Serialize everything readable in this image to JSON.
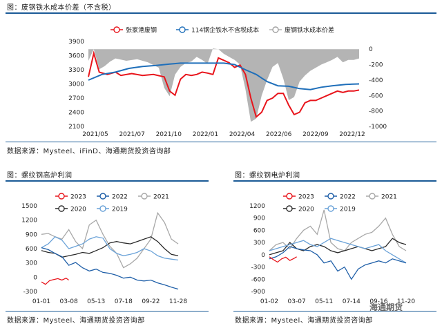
{
  "captions": {
    "fig1_title": "图：废钢铁水成本价差（不含税）",
    "fig1_source": "数据来源：Mysteel、iFinD、海通期货投资咨询部",
    "fig2_title": "图：螺纹钢高炉利润",
    "fig2_source": "数据来源：Mysteel、海通期货投资咨询部",
    "fig3_title": "图：螺纹钢电炉利润",
    "fig3_source": "数据来源：Mysteel、海通期货投资咨询部"
  },
  "watermark": "海通期货",
  "chart_data": [
    {
      "type": "line",
      "title": "",
      "x_ticks": [
        "2021/05",
        "2021/07",
        "2021/10",
        "2022/01",
        "2022/04",
        "2022/06",
        "2022/09",
        "2022/12"
      ],
      "y_left_ticks": [
        2100,
        2400,
        2700,
        3000,
        3300,
        3600,
        3900
      ],
      "y_right_ticks": [
        0,
        -200,
        -400,
        -600,
        -800,
        -1000
      ],
      "ylim_left": [
        2100,
        3900
      ],
      "ylim_right": [
        -1000,
        100
      ],
      "legend": "top",
      "series": [
        {
          "name": "张家港废钢",
          "axis": "left",
          "color": "#e8141b",
          "style": "line",
          "x": [
            0,
            2,
            4,
            7,
            10,
            12,
            16,
            20,
            24,
            28,
            30,
            32,
            34,
            36,
            38,
            40,
            42,
            44,
            46,
            48,
            50,
            52,
            54,
            56,
            58,
            60,
            62,
            64,
            66,
            68,
            70,
            72,
            74,
            76,
            78,
            80,
            82,
            84,
            86,
            88,
            90,
            92,
            94,
            96,
            98,
            100
          ],
          "values": [
            3150,
            3650,
            3250,
            3200,
            3250,
            3180,
            3220,
            3180,
            3200,
            3150,
            2850,
            2760,
            3100,
            3200,
            3180,
            3200,
            3250,
            3230,
            3200,
            3550,
            3500,
            3450,
            3350,
            3400,
            3200,
            2700,
            2300,
            2400,
            2650,
            2700,
            2800,
            2800,
            2550,
            2350,
            2400,
            2600,
            2650,
            2650,
            2700,
            2750,
            2800,
            2850,
            2820,
            2850,
            2850,
            2870
          ]
        },
        {
          "name": "114钢企铁水不含税成本",
          "axis": "left",
          "color": "#1f6fba",
          "style": "line",
          "x": [
            0,
            5,
            10,
            15,
            20,
            25,
            30,
            34,
            38,
            42,
            46,
            50,
            54,
            58,
            62,
            66,
            70,
            74,
            78,
            82,
            86,
            90,
            95,
            100
          ],
          "values": [
            3080,
            3200,
            3250,
            3330,
            3370,
            3390,
            3420,
            3440,
            3440,
            3440,
            3440,
            3440,
            3410,
            3300,
            3200,
            3050,
            2960,
            2950,
            2900,
            2880,
            2930,
            2960,
            2990,
            3000
          ]
        },
        {
          "name": "废钢铁水成本价差",
          "axis": "right",
          "color": "#b4b4b4",
          "style": "area",
          "x": [
            0,
            2,
            4,
            6,
            8,
            10,
            14,
            18,
            22,
            26,
            28,
            30,
            32,
            34,
            36,
            38,
            40,
            42,
            44,
            46,
            48,
            50,
            52,
            54,
            56,
            58,
            60,
            62,
            64,
            66,
            68,
            70,
            72,
            74,
            76,
            78,
            80,
            82,
            84,
            86,
            88,
            90,
            92,
            94,
            96,
            98,
            100
          ],
          "values": [
            -150,
            0,
            -260,
            -220,
            -160,
            -120,
            -150,
            -130,
            -170,
            -240,
            -500,
            -610,
            -330,
            -230,
            -180,
            -160,
            -100,
            -140,
            -190,
            10,
            0,
            -60,
            -100,
            -140,
            -200,
            -520,
            -940,
            -900,
            -600,
            -400,
            -230,
            -180,
            -380,
            -660,
            -620,
            -420,
            -340,
            -280,
            -240,
            -200,
            -170,
            -140,
            -100,
            -170,
            -140,
            -140,
            -120
          ]
        }
      ]
    },
    {
      "type": "line",
      "title": "",
      "x_ticks": [
        "01-01",
        "03-08",
        "05-13",
        "07-18",
        "09-22",
        "11-28"
      ],
      "y_ticks": [
        -300,
        0,
        300,
        600,
        900,
        1200,
        1500
      ],
      "ylim": [
        -300,
        1500
      ],
      "legend": "top",
      "series": [
        {
          "name": "2023",
          "color": "#e8141b",
          "x": [
            0,
            3,
            6,
            9,
            12,
            15,
            18,
            20
          ],
          "values": [
            -100,
            -150,
            -70,
            -50,
            -30,
            -60,
            -20,
            -60
          ]
        },
        {
          "name": "2022",
          "color": "#1f5fa8",
          "x": [
            0,
            5,
            10,
            15,
            20,
            25,
            30,
            35,
            40,
            45,
            50,
            55,
            60,
            65,
            70,
            75,
            80,
            85,
            90,
            95,
            100
          ],
          "values": [
            620,
            580,
            500,
            430,
            250,
            310,
            200,
            130,
            170,
            100,
            80,
            40,
            -20,
            0,
            -60,
            -80,
            -60,
            -120,
            -160,
            -210,
            -250
          ]
        },
        {
          "name": "2021",
          "color": "#a8a8a8",
          "x": [
            0,
            5,
            10,
            15,
            20,
            25,
            30,
            35,
            40,
            45,
            50,
            55,
            60,
            65,
            70,
            75,
            80,
            85,
            90,
            95,
            100
          ],
          "values": [
            900,
            920,
            850,
            800,
            1000,
            750,
            600,
            1100,
            1200,
            900,
            650,
            500,
            200,
            280,
            400,
            600,
            800,
            1350,
            1150,
            800,
            700
          ]
        },
        {
          "name": "2020",
          "color": "#2a2a2a",
          "x": [
            0,
            5,
            10,
            15,
            20,
            25,
            30,
            35,
            40,
            45,
            50,
            55,
            60,
            65,
            70,
            75,
            80,
            85,
            90,
            95,
            100
          ],
          "values": [
            560,
            520,
            500,
            420,
            450,
            480,
            520,
            500,
            560,
            620,
            720,
            750,
            720,
            700,
            750,
            800,
            850,
            750,
            600,
            480,
            450
          ]
        },
        {
          "name": "2019",
          "color": "#6aa2d8",
          "x": [
            0,
            5,
            10,
            15,
            20,
            25,
            30,
            35,
            40,
            45,
            50,
            55,
            60,
            65,
            70,
            75,
            80,
            85,
            90,
            95,
            100
          ],
          "values": [
            620,
            700,
            850,
            780,
            600,
            650,
            700,
            800,
            850,
            820,
            600,
            500,
            450,
            480,
            520,
            600,
            550,
            450,
            400,
            380,
            360
          ]
        }
      ]
    },
    {
      "type": "line",
      "title": "",
      "x_ticks": [
        "01-02",
        "03-07",
        "05-11",
        "07-14",
        "09-16",
        "11-20"
      ],
      "y_ticks": [
        -900,
        -600,
        -300,
        0,
        300,
        600,
        900,
        1200
      ],
      "ylim": [
        -900,
        1200
      ],
      "legend": "top",
      "series": [
        {
          "name": "2023",
          "color": "#e8141b",
          "x": [
            0,
            3,
            6,
            9,
            12,
            15,
            18,
            20
          ],
          "values": [
            -50,
            -120,
            -180,
            -100,
            -60,
            -140,
            -90,
            -50
          ]
        },
        {
          "name": "2022",
          "color": "#1f5fa8",
          "x": [
            0,
            5,
            10,
            15,
            20,
            25,
            30,
            35,
            40,
            45,
            50,
            55,
            60,
            65,
            70,
            75,
            80,
            85,
            90,
            95,
            100
          ],
          "values": [
            -100,
            -50,
            50,
            200,
            150,
            120,
            100,
            0,
            -200,
            -150,
            -400,
            -300,
            -600,
            -350,
            -250,
            -200,
            -150,
            -200,
            -100,
            -150,
            -200
          ]
        },
        {
          "name": "2021",
          "color": "#a8a8a8",
          "x": [
            0,
            5,
            10,
            15,
            20,
            25,
            30,
            35,
            40,
            45,
            50,
            55,
            60,
            65,
            70,
            75,
            80,
            85,
            90,
            95,
            100
          ],
          "values": [
            100,
            250,
            300,
            150,
            400,
            600,
            700,
            500,
            1100,
            300,
            150,
            100,
            300,
            400,
            500,
            550,
            700,
            900,
            500,
            200,
            100
          ]
        },
        {
          "name": "2020",
          "color": "#2a2a2a",
          "x": [
            0,
            5,
            10,
            15,
            20,
            25,
            30,
            35,
            40,
            45,
            50,
            55,
            60,
            65,
            70,
            75,
            80,
            85,
            90,
            95,
            100
          ],
          "values": [
            0,
            50,
            100,
            300,
            150,
            100,
            200,
            250,
            200,
            100,
            50,
            100,
            150,
            200,
            150,
            100,
            150,
            200,
            400,
            300,
            250
          ]
        },
        {
          "name": "2019",
          "color": "#6aa2d8",
          "x": [
            0,
            5,
            10,
            15,
            20,
            25,
            30,
            35,
            40,
            45,
            50,
            55,
            60,
            65,
            70,
            75,
            80,
            85,
            90,
            95,
            100
          ],
          "values": [
            100,
            150,
            200,
            250,
            300,
            350,
            250,
            200,
            300,
            400,
            350,
            300,
            250,
            200,
            150,
            200,
            250,
            100,
            0,
            -100,
            -200
          ]
        }
      ]
    }
  ]
}
